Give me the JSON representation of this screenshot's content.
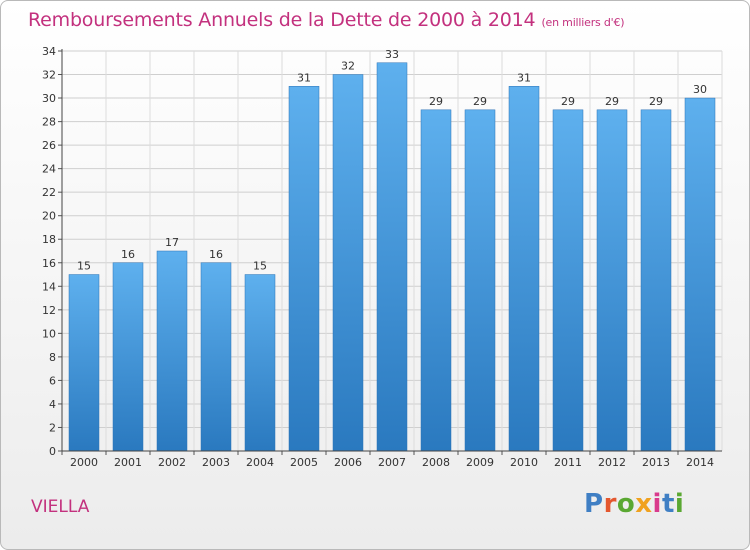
{
  "chart_data": {
    "type": "bar",
    "title": "Remboursements Annuels de la Dette de 2000 à 2014",
    "subtitle": "(en milliers d'€)",
    "categories": [
      "2000",
      "2001",
      "2002",
      "2003",
      "2004",
      "2005",
      "2006",
      "2007",
      "2008",
      "2009",
      "2010",
      "2011",
      "2012",
      "2013",
      "2014"
    ],
    "values": [
      15,
      16,
      17,
      16,
      15,
      31,
      32,
      33,
      29,
      29,
      31,
      29,
      29,
      29,
      30
    ],
    "ylim": [
      0,
      34
    ],
    "yticks": [
      0,
      2,
      4,
      6,
      8,
      10,
      12,
      14,
      16,
      18,
      20,
      22,
      24,
      26,
      28,
      30,
      32,
      34
    ],
    "grid": true,
    "bar_color": "#3a8fd6"
  },
  "footer": {
    "commune": "VIELLA",
    "logo": "Proxiti",
    "logo_letters": [
      "P",
      "r",
      "o",
      "x",
      "i",
      "t",
      "i"
    ]
  }
}
